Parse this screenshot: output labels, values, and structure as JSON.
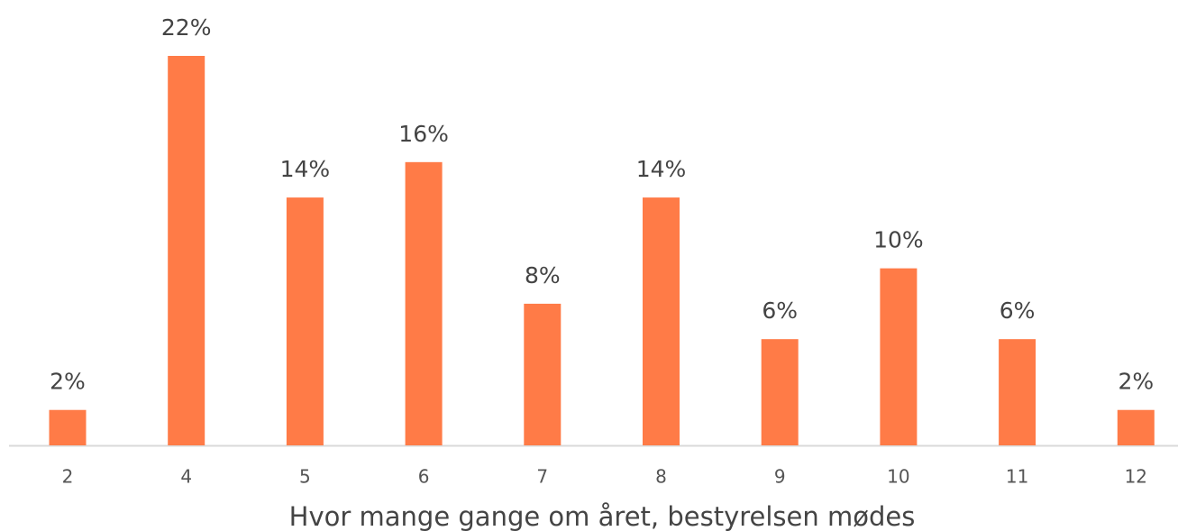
{
  "chart_data": {
    "type": "bar",
    "x_label": "Hvor mange gange om året, bestyrelsen mødes",
    "categories": [
      "2",
      "4",
      "5",
      "6",
      "7",
      "8",
      "9",
      "10",
      "11",
      "12"
    ],
    "values": [
      2,
      22,
      14,
      16,
      8,
      14,
      6,
      10,
      6,
      2
    ],
    "value_labels": [
      "2%",
      "22%",
      "14%",
      "16%",
      "8%",
      "14%",
      "6%",
      "10%",
      "6%",
      "2%"
    ],
    "color": "#ff7b47"
  }
}
